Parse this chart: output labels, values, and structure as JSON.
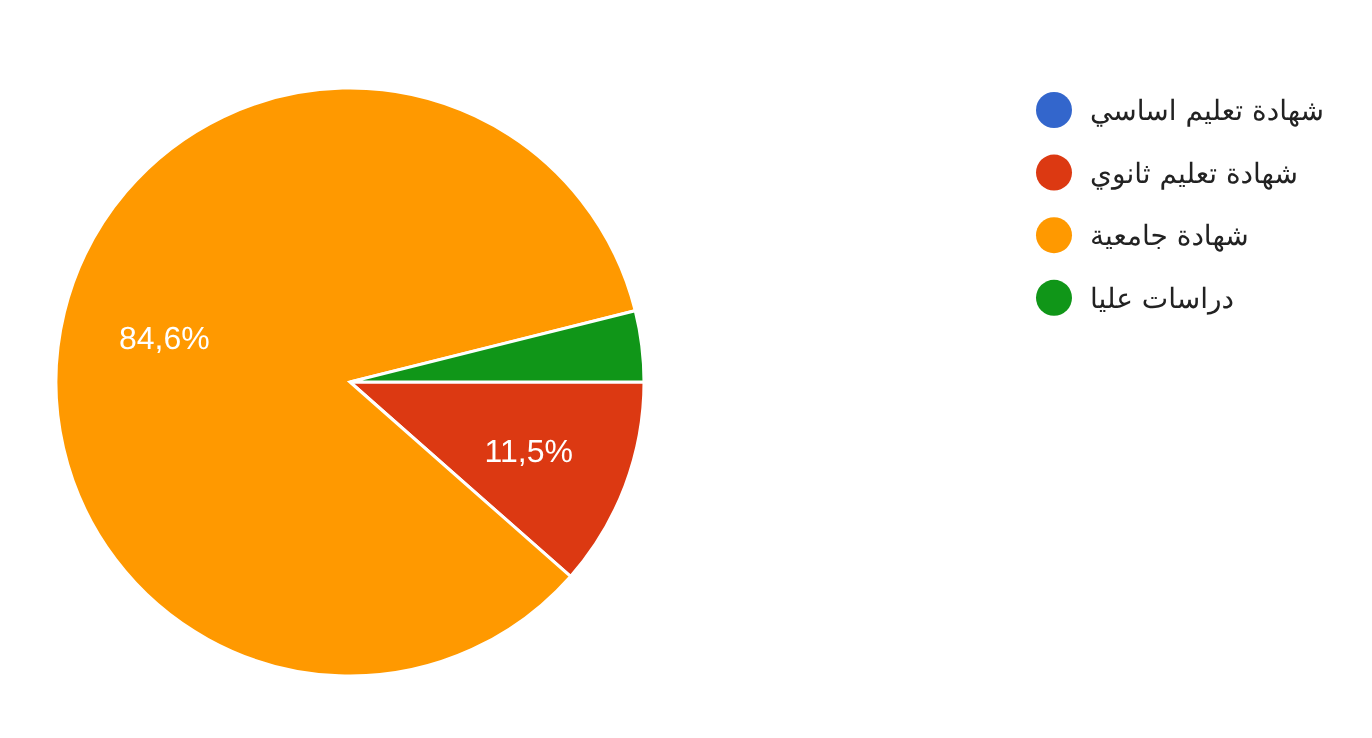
{
  "chart_data": {
    "type": "pie",
    "categories": [
      "شهادة تعليم اساسي",
      "شهادة تعليم ثانوي",
      "شهادة جامعية",
      "دراسات عليا"
    ],
    "values": [
      0,
      11.5,
      84.6,
      3.9
    ],
    "colors": [
      "#3366cc",
      "#dc3912",
      "#ff9900",
      "#109618"
    ],
    "value_labels": [
      null,
      "11,5%",
      "84,6%",
      null
    ],
    "legend": "right"
  }
}
